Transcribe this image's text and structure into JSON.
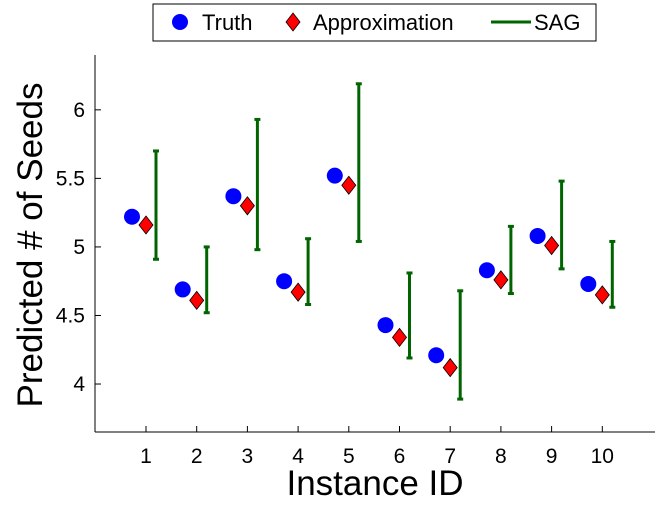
{
  "chart_data": {
    "type": "scatter",
    "title": "",
    "xlabel": "Instance ID",
    "ylabel": "Predicted # of Seeds",
    "categories": [
      "1",
      "2",
      "3",
      "4",
      "5",
      "6",
      "7",
      "8",
      "9",
      "10"
    ],
    "ylim": [
      3.65,
      6.4
    ],
    "yticks": [
      4,
      4.5,
      5,
      5.5,
      6
    ],
    "ytick_labels": [
      "4",
      "4.5",
      "5",
      "5.5",
      "6"
    ],
    "legend": {
      "placement": "top-center",
      "entries": [
        "Truth",
        "Approximation",
        "SAG"
      ]
    },
    "series": [
      {
        "name": "Truth",
        "marker": "circle",
        "color": "#0000ff",
        "values": [
          5.22,
          4.69,
          5.37,
          4.75,
          5.52,
          4.43,
          4.21,
          4.83,
          5.08,
          4.73
        ]
      },
      {
        "name": "Approximation",
        "marker": "diamond",
        "color": "#ff0000",
        "values": [
          5.16,
          4.61,
          5.3,
          4.67,
          5.45,
          4.34,
          4.12,
          4.76,
          5.01,
          4.65
        ]
      },
      {
        "name": "SAG",
        "marker": "errorbar",
        "color": "#006400",
        "low": [
          4.91,
          4.52,
          4.98,
          4.58,
          5.04,
          4.19,
          3.89,
          4.66,
          4.84,
          4.56
        ],
        "high": [
          5.7,
          5.0,
          5.93,
          5.06,
          6.19,
          4.81,
          4.68,
          5.15,
          5.48,
          5.04
        ]
      }
    ]
  }
}
